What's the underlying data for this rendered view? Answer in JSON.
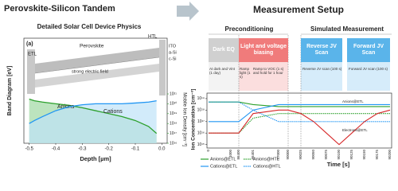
{
  "header": {
    "left_title": "Perovskite-Silicon Tandem",
    "right_title": "Measurement Setup",
    "groups": [
      "Preconditioning",
      "Simulated Measurement"
    ],
    "stages": [
      {
        "label": "Dark EQ",
        "color": "#d0d0d0"
      },
      {
        "label": "Light and voltage biasing",
        "color": "#f07b7b"
      },
      {
        "label": "Reverse JV Scan",
        "color": "#5ab4ea"
      },
      {
        "label": "Forward JV Scan",
        "color": "#5ab4ea"
      }
    ],
    "notes": [
      "At dark and Vint (1 day)",
      "Ramp light (1 s)",
      "Ramp to VOC (1 s) and hold for 1 hour",
      "Reverse JV scan (100 s)",
      "Forward JV scan (100 s)"
    ]
  },
  "chart_data": [
    {
      "type": "line",
      "title": "Detailed Solar Cell Device Physics",
      "panel_label": "(a)",
      "xlabel": "Depth [µm]",
      "ylabel": "Band Diagram [eV]",
      "y2label": "Mobile Ion Density [cm⁻³]",
      "annotations": [
        "ETL",
        "Perovskite",
        "HTL",
        "ITO",
        "a-Si",
        "c-Si",
        "strong electric field"
      ],
      "x": [
        -0.5,
        -0.48,
        -0.45,
        -0.4,
        -0.35,
        -0.3,
        -0.25,
        -0.2,
        -0.15,
        -0.1,
        -0.05,
        -0.02
      ],
      "xlim": [
        -0.52,
        0.02
      ],
      "xticks": [
        -0.5,
        -0.4,
        -0.3,
        -0.2,
        -0.1,
        {
          "value": 0,
          "label": "0.0"
        }
      ],
      "y2scale": "log",
      "y2lim": [
        1e+16,
        1e+21
      ],
      "y2ticks": [
        {
          "value": 1e+16,
          "label": "10¹⁶"
        },
        {
          "value": 1e+17,
          "label": "10¹⁷"
        },
        {
          "value": 1e+18,
          "label": "10¹⁸"
        },
        {
          "value": 1e+19,
          "label": "10¹⁹"
        },
        {
          "value": 1e+20,
          "label": "10²⁰"
        },
        {
          "value": 1e+21,
          "label": "10²¹"
        }
      ],
      "series": [
        {
          "name": "Anions",
          "color": "#2ca02c",
          "fill": "#9fd8a3",
          "axis": "y2",
          "values": [
            3e+20,
            2e+20,
            1.5e+20,
            1e+20,
            7e+19,
            4e+19,
            2e+19,
            1e+19,
            5e+18,
            2e+18,
            5e+17,
            1e+17
          ]
        },
        {
          "name": "Cations",
          "color": "#2196f3",
          "fill": "#bfe3f8",
          "axis": "y2",
          "values": [
            1e+18,
            2e+18,
            5e+18,
            2e+19,
            5e+19,
            8e+19,
            1e+20,
            1e+20,
            1e+20,
            1.2e+20,
            1.5e+20,
            2e+20
          ]
        }
      ]
    },
    {
      "type": "line",
      "xlabel": "Time [s]",
      "ylabel": "Ion Concentration [cm⁻³]",
      "categories": [
        "0",
        "1000",
        "86400",
        "86401",
        "87000",
        "90000",
        "90025",
        "90050",
        "90075",
        "90100",
        "90125",
        "90150",
        "90175",
        "90200"
      ],
      "yscale": "log",
      "ylim": [
        500000000000000.0,
        3e+19
      ],
      "yticks": [
        {
          "value": 1000000000000000.0,
          "label": "10¹⁵"
        },
        {
          "value": 1e+16,
          "label": "10¹⁶"
        },
        {
          "value": 1e+17,
          "label": "10¹⁷"
        },
        {
          "value": 1e+18,
          "label": "10¹⁸"
        },
        {
          "value": 1e+19,
          "label": "10¹⁹"
        }
      ],
      "series": [
        {
          "name": "Anions@ETL",
          "color": "#2ca02c",
          "dash": false,
          "in_legend": true,
          "values": [
            5e+18,
            5e+18,
            5e+18,
            3e+18,
            2e+18,
            2e+18,
            2e+18,
            2e+18,
            2e+18,
            2e+18,
            2e+18,
            2e+18,
            2e+18,
            2e+18
          ]
        },
        {
          "name": "Cations@ETL",
          "color": "#2196f3",
          "dash": false,
          "in_legend": true,
          "values": [
            1e+17,
            1e+17,
            1e+17,
            1e+18,
            3e+18,
            3e+18,
            3e+18,
            3e+18,
            3e+18,
            3e+18,
            3e+18,
            3e+18,
            3e+18,
            3e+18
          ]
        },
        {
          "name": "Anions@HTL",
          "color": "#2ca02c",
          "dash": true,
          "in_legend": true,
          "values": [
            1e+16,
            1e+16,
            1e+16,
            2e+17,
            5e+17,
            5e+17,
            5e+17,
            5e+17,
            5e+17,
            5e+17,
            5e+17,
            5e+17,
            5e+17,
            5e+17
          ]
        },
        {
          "name": "Cations@HTL",
          "color": "#2196f3",
          "dash": true,
          "in_legend": true,
          "values": [
            5e+18,
            5e+18,
            5e+18,
            1e+18,
            1e+17,
            1e+17,
            1e+17,
            1e+17,
            1e+17,
            1e+17,
            1e+17,
            1e+17,
            1e+17,
            1e+17
          ]
        },
        {
          "name": "Electrons@ETL",
          "color": "#d62728",
          "dash": false,
          "in_legend": false,
          "values": [
            1e+16,
            1e+16,
            1e+16,
            5e+17,
            1e+18,
            1e+18,
            5e+17,
            1e+17,
            1e+16,
            1000000000000000.0,
            1e+16,
            1e+17,
            5e+17,
            1e+18
          ]
        }
      ]
    }
  ]
}
